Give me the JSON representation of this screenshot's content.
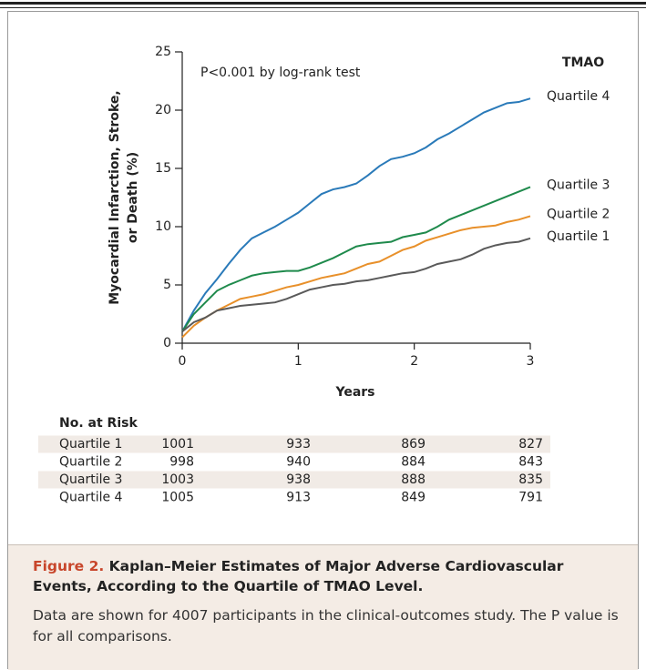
{
  "chart_data": {
    "type": "line",
    "annotation": "P<0.001 by log-rank test",
    "ylabel": [
      "Myocardial Infarction, Stroke,",
      "or Death (%)"
    ],
    "xlabel": "Years",
    "legend_title": "TMAO",
    "xlim": [
      0,
      3
    ],
    "xticks": [
      0,
      1,
      2,
      3
    ],
    "ylim": [
      0,
      25
    ],
    "yticks": [
      0,
      5,
      10,
      15,
      20,
      25
    ],
    "x": [
      0,
      0.1,
      0.2,
      0.3,
      0.4,
      0.5,
      0.6,
      0.7,
      0.8,
      0.9,
      1.0,
      1.1,
      1.2,
      1.3,
      1.4,
      1.5,
      1.6,
      1.7,
      1.8,
      1.9,
      2.0,
      2.1,
      2.2,
      2.3,
      2.4,
      2.5,
      2.6,
      2.7,
      2.8,
      2.9,
      3.0
    ],
    "series": [
      {
        "name": "Quartile 4",
        "color": "#2a7ab9",
        "values": [
          1,
          2.8,
          4.3,
          5.5,
          6.8,
          8.0,
          9.0,
          9.5,
          10.0,
          10.6,
          11.2,
          12.0,
          12.8,
          13.2,
          13.4,
          13.7,
          14.4,
          15.2,
          15.8,
          16.0,
          16.3,
          16.8,
          17.5,
          18.0,
          18.6,
          19.2,
          19.8,
          20.2,
          20.6,
          20.7,
          21.0
        ]
      },
      {
        "name": "Quartile 3",
        "color": "#1f8a4c",
        "values": [
          1,
          2.5,
          3.5,
          4.5,
          5.0,
          5.4,
          5.8,
          6.0,
          6.1,
          6.2,
          6.2,
          6.5,
          6.9,
          7.3,
          7.8,
          8.3,
          8.5,
          8.6,
          8.7,
          9.1,
          9.3,
          9.5,
          10.0,
          10.6,
          11.0,
          11.4,
          11.8,
          12.2,
          12.6,
          13.0,
          13.4
        ]
      },
      {
        "name": "Quartile 2",
        "color": "#e8902a",
        "values": [
          0.5,
          1.5,
          2.2,
          2.8,
          3.3,
          3.8,
          4.0,
          4.2,
          4.5,
          4.8,
          5.0,
          5.3,
          5.6,
          5.8,
          6.0,
          6.4,
          6.8,
          7.0,
          7.5,
          8.0,
          8.3,
          8.8,
          9.1,
          9.4,
          9.7,
          9.9,
          10.0,
          10.1,
          10.4,
          10.6,
          10.9
        ]
      },
      {
        "name": "Quartile 1",
        "color": "#5a5a5a",
        "values": [
          1,
          1.8,
          2.2,
          2.8,
          3.0,
          3.2,
          3.3,
          3.4,
          3.5,
          3.8,
          4.2,
          4.6,
          4.8,
          5.0,
          5.1,
          5.3,
          5.4,
          5.6,
          5.8,
          6.0,
          6.1,
          6.4,
          6.8,
          7.0,
          7.2,
          7.6,
          8.1,
          8.4,
          8.6,
          8.7,
          9.0
        ]
      }
    ]
  },
  "risk_table": {
    "title": "No. at Risk",
    "rows": [
      {
        "label": "Quartile 1",
        "values": [
          1001,
          933,
          869,
          827
        ]
      },
      {
        "label": "Quartile 2",
        "values": [
          998,
          940,
          884,
          843
        ]
      },
      {
        "label": "Quartile 3",
        "values": [
          1003,
          938,
          888,
          835
        ]
      },
      {
        "label": "Quartile 4",
        "values": [
          1005,
          913,
          849,
          791
        ]
      }
    ]
  },
  "caption": {
    "label": "Figure 2.",
    "title": "Kaplan–Meier Estimates of Major Adverse Cardiovascular Events, According to the Quartile of TMAO Level.",
    "text": "Data are shown for 4007 participants in the clinical-outcomes study. The P value is for all comparisons."
  }
}
